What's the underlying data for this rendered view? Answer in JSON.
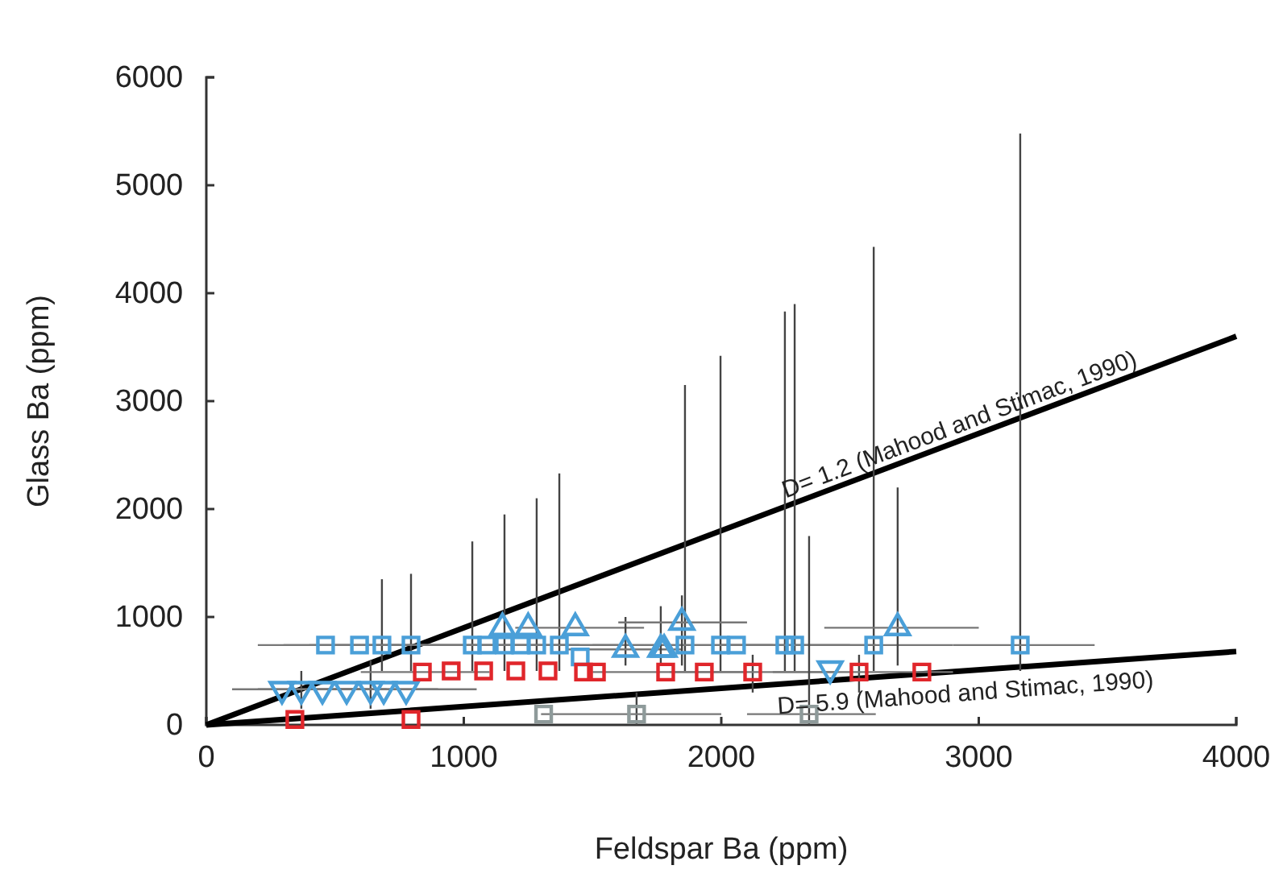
{
  "chart_data": {
    "type": "scatter",
    "xlabel": "Feldspar Ba (ppm)",
    "ylabel": "Glass Ba (ppm)",
    "xlim": [
      0,
      4000
    ],
    "xticks": [
      0,
      1000,
      2000,
      3000,
      4000
    ],
    "ylim": [
      0,
      6000
    ],
    "yticks": [
      0,
      1000,
      2000,
      3000,
      4000,
      5000,
      6000
    ],
    "grid": false,
    "series": [
      {
        "type": "line",
        "color": "#000000",
        "x": [
          0,
          4000
        ],
        "values": [
          0,
          3600
        ],
        "line_style": "solid"
      },
      {
        "type": "line",
        "color": "#000000",
        "x": [
          0,
          4000
        ],
        "values": [
          0,
          680
        ],
        "line_style": "solid"
      },
      {
        "color": "#4a9fd8",
        "marker": "square",
        "x": [
          463,
          595,
          682,
          795,
          1033,
          1089,
          1158,
          1221,
          1283,
          1371,
          1452,
          1859,
          1997,
          2059,
          2247,
          2285,
          2592,
          3161
        ],
        "values": [
          740,
          740,
          740,
          740,
          740,
          740,
          740,
          740,
          740,
          740,
          630,
          740,
          740,
          740,
          740,
          740,
          740,
          740
        ],
        "errors": [
          null,
          null,
          [
            500,
            1350
          ],
          [
            500,
            1400
          ],
          [
            500,
            1700
          ],
          null,
          [
            500,
            1950
          ],
          null,
          [
            500,
            2100
          ],
          [
            500,
            2330
          ],
          null,
          [
            500,
            3150
          ],
          [
            500,
            3420
          ],
          null,
          [
            500,
            3830
          ],
          [
            500,
            3900
          ],
          [
            500,
            4430
          ],
          [
            500,
            5480
          ]
        ],
        "xerrors": [
          [
            200,
            750
          ],
          [
            300,
            900
          ],
          [
            400,
            1000
          ],
          [
            500,
            1100
          ],
          [
            700,
            1400
          ],
          null,
          [
            900,
            1450
          ],
          null,
          [
            1000,
            1600
          ],
          [
            1100,
            1700
          ],
          null,
          [
            1500,
            2200
          ],
          [
            1700,
            2300
          ],
          null,
          [
            2000,
            2500
          ],
          [
            2000,
            2600
          ],
          [
            2300,
            2900
          ],
          [
            2900,
            3450
          ]
        ]
      },
      {
        "color": "#4a9fd8",
        "marker": "triangle",
        "x": [
          1150,
          1250,
          1433,
          1628,
          1765,
          1778,
          1847,
          2685
        ],
        "values": [
          900,
          900,
          900,
          700,
          700,
          700,
          950,
          900
        ],
        "errors": [
          null,
          null,
          null,
          [
            550,
            1000
          ],
          [
            550,
            1100
          ],
          null,
          [
            550,
            1200
          ],
          [
            550,
            2200
          ]
        ],
        "xerrors": [
          null,
          null,
          [
            1200,
            1700
          ],
          [
            1400,
            1850
          ],
          null,
          null,
          [
            1600,
            2100
          ],
          [
            2400,
            3000
          ]
        ]
      },
      {
        "color": "#4a9fd8",
        "marker": "triangle-down",
        "x": [
          294,
          369,
          451,
          545,
          638,
          689,
          776,
          2423
        ],
        "values": [
          330,
          330,
          330,
          330,
          330,
          330,
          330,
          520
        ],
        "errors": [
          null,
          [
            150,
            500
          ],
          null,
          null,
          [
            150,
            600
          ],
          null,
          null,
          null
        ],
        "xerrors": [
          [
            100,
            600
          ],
          null,
          [
            200,
            700
          ],
          null,
          [
            400,
            900
          ],
          null,
          [
            500,
            1050
          ],
          null
        ]
      },
      {
        "color": "#e0262b",
        "marker": "square",
        "x": [
          344,
          795,
          839,
          951,
          1077,
          1202,
          1327,
          1465,
          1515,
          1784,
          1934,
          2122,
          2535,
          2779
        ],
        "values": [
          50,
          50,
          490,
          500,
          500,
          500,
          500,
          490,
          490,
          490,
          490,
          490,
          490,
          490
        ],
        "errors": [
          null,
          null,
          null,
          null,
          null,
          null,
          null,
          null,
          null,
          null,
          null,
          [
            300,
            650
          ],
          [
            300,
            650
          ],
          null
        ],
        "xerrors": [
          null,
          null,
          [
            600,
            1100
          ],
          null,
          null,
          null,
          null,
          null,
          null,
          [
            1500,
            2100
          ],
          null,
          [
            1800,
            2450
          ],
          [
            2200,
            2900
          ],
          null
        ]
      },
      {
        "color": "#8e9a9a",
        "marker": "square",
        "x": [
          1310,
          1671,
          2341
        ],
        "values": [
          100,
          100,
          100
        ],
        "errors": [
          null,
          [
            0,
            300
          ],
          [
            0,
            1750
          ]
        ],
        "xerrors": [
          null,
          [
            1300,
            2000
          ],
          [
            2100,
            2600
          ]
        ]
      }
    ],
    "annotations": [
      {
        "text": "D= 1.2 (Mahood and Stimac, 1990)",
        "x": 2250,
        "y": 2100
      },
      {
        "text": "D= 5.9 (Mahood and Stimac, 1990)",
        "x": 2220,
        "y": 100
      }
    ]
  }
}
